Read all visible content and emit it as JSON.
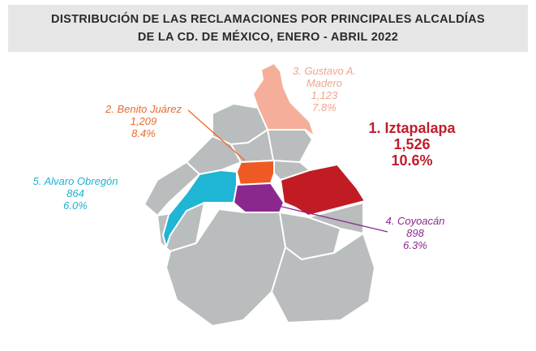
{
  "title": {
    "line1": "DISTRIBUCIÓN DE LAS RECLAMACIONES POR PRINCIPALES ALCALDÍAS",
    "line2": "DE LA CD. DE MÉXICO, ENERO - ABRIL 2022"
  },
  "colors": {
    "base": "#b9bdbd",
    "border": "#ffffff",
    "iztapalapa": "#c11b24",
    "benito_juarez": "#ef5a24",
    "gustavo_madero": "#f5ae99",
    "alvaro_obregon": "#1fb5d4",
    "coyoacan": "#8b2890"
  },
  "alcaldias": [
    {
      "rank_name": "1. Iztapalapa",
      "count": "1,526",
      "percent": "10.6%"
    },
    {
      "rank_name": "2. Benito Juárez",
      "count": "1,209",
      "percent": "8.4%"
    },
    {
      "rank_name": "3. Gustavo A.",
      "rank_name_2": "Madero",
      "count": "1,123",
      "percent": "7.8%"
    },
    {
      "rank_name": "4. Coyoacán",
      "count": "898",
      "percent": "6.3%"
    },
    {
      "rank_name": "5. Alvaro Obregón",
      "count": "864",
      "percent": "6.0%"
    }
  ]
}
